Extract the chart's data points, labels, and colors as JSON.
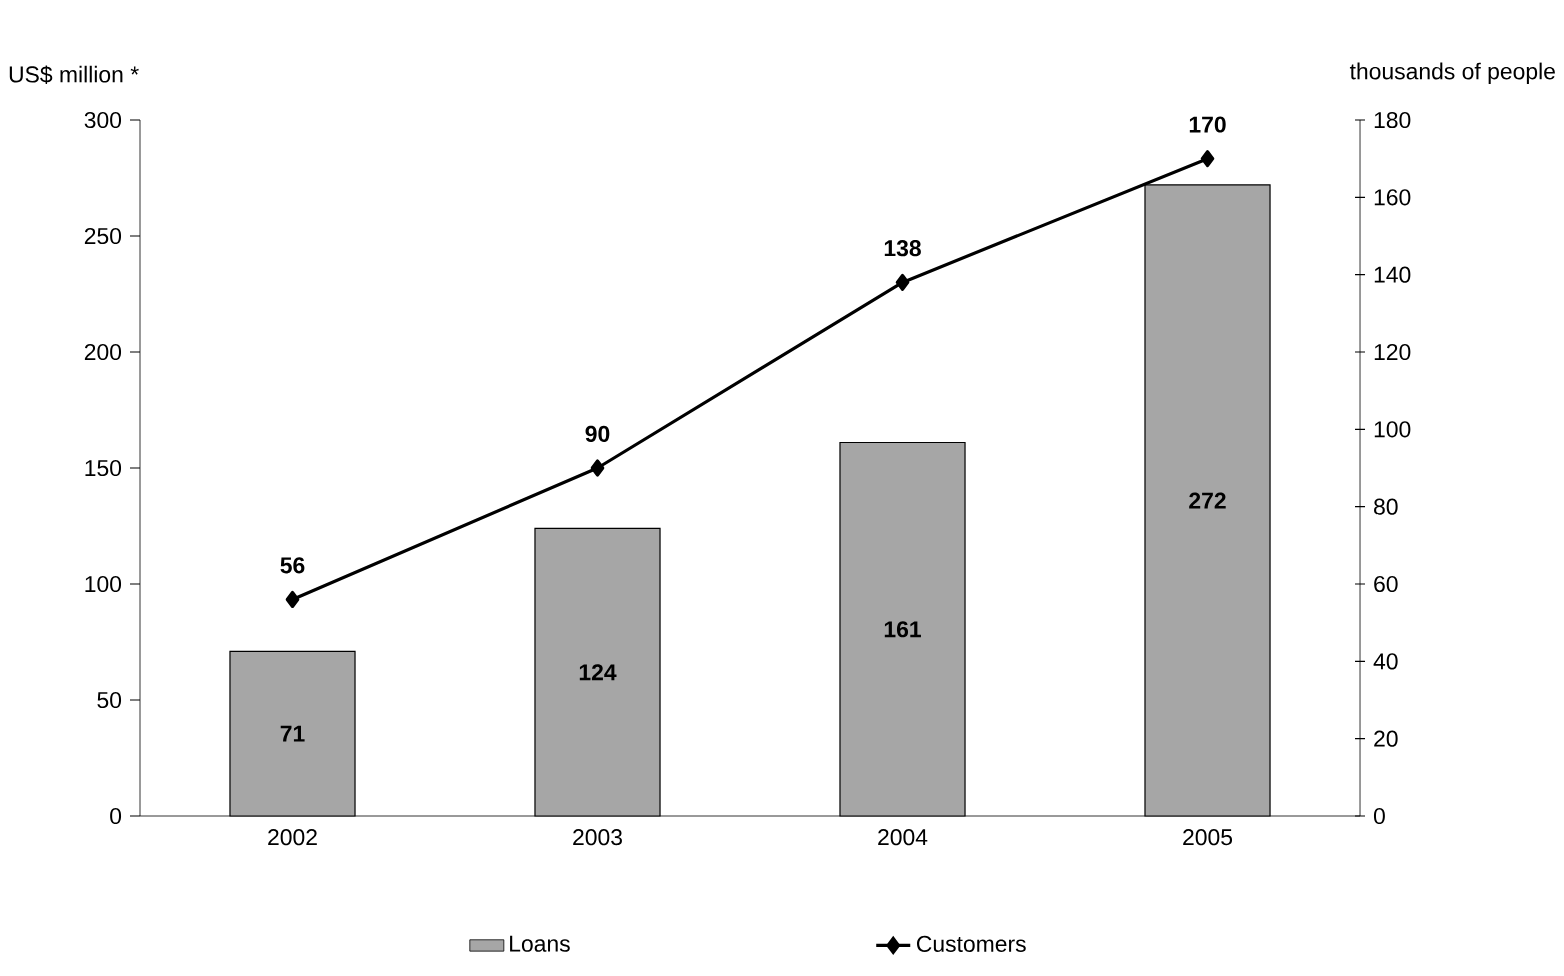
{
  "chart_data": {
    "type": "bar",
    "categories": [
      "2002",
      "2003",
      "2004",
      "2005"
    ],
    "ylabel": "US$ million *",
    "y2label": "thousands of people",
    "ylim": [
      0,
      300
    ],
    "yticks": [
      0,
      50,
      100,
      150,
      200,
      250,
      300
    ],
    "y2lim": [
      0,
      180
    ],
    "y2ticks": [
      0,
      20,
      40,
      60,
      80,
      100,
      120,
      140,
      160,
      180
    ],
    "data_labels": true,
    "legend": "bottom",
    "series": [
      {
        "name": "Loans",
        "color": "#a6a6a6",
        "values": [
          71,
          124,
          161,
          272
        ]
      },
      {
        "name": "Customers",
        "type": "line",
        "axis": "y2",
        "color": "#000000",
        "marker": "diamond",
        "values": [
          56,
          90,
          138,
          170
        ]
      }
    ]
  }
}
